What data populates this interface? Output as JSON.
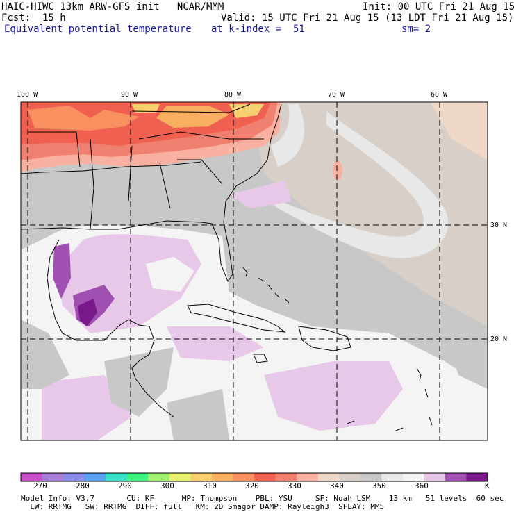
{
  "header": {
    "title_line": "HAIC-HIWC 13km ARW-GFS init   NCAR/MMM",
    "init": "Init: 00 UTC Fri 21 Aug 15",
    "fcst": "Fcst:  15 h",
    "valid": "Valid: 15 UTC Fri 21 Aug 15 (13 LDT Fri 21 Aug 15)",
    "field": "Equivalent potential temperature",
    "level": "at k-index =  51",
    "smoothing": "sm= 2"
  },
  "map": {
    "lon_labels": [
      "100 W",
      "90 W",
      "80 W",
      "70 W",
      "60 W"
    ],
    "lat_labels": [
      "30 N",
      "20 N"
    ]
  },
  "colorbar": {
    "unit": "K",
    "labels": [
      "270",
      "280",
      "290",
      "300",
      "310",
      "320",
      "330",
      "340",
      "350",
      "360"
    ],
    "colors": [
      "#c94fc9",
      "#a77dd6",
      "#8b8be8",
      "#5aa0f0",
      "#38e0c8",
      "#40f080",
      "#a0f070",
      "#e8f070",
      "#f8d070",
      "#f8b060",
      "#f89060",
      "#f06050",
      "#f08070",
      "#f8b0a0",
      "#f0d8c8",
      "#d8d0c8",
      "#c8c8c8",
      "#e8e8e8",
      "#f4f4f4",
      "#e8c8e8",
      "#a050b0",
      "#7a1a8a"
    ]
  },
  "footer": {
    "line1": "Model Info: V3.7       CU: KF      MP: Thompson    PBL: YSU     SF: Noah LSM    13 km   51 levels  60 sec",
    "line2": "  LW: RRTMG   SW: RRTMG  DIFF: full   KM: 2D Smagor DAMP: Rayleigh3  SFLAY: MM5"
  }
}
